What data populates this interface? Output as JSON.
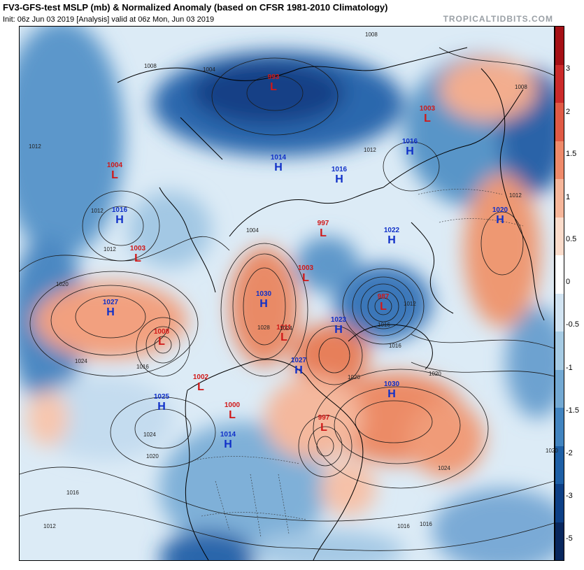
{
  "header": {
    "title": "FV3-GFS-test MSLP (mb) & Normalized Anomaly (based on CFSR 1981-2010 Climatology)",
    "subtitle": "Init: 06z Jun 03 2019   [Analysis]   valid at 06z Mon, Jun 03 2019",
    "brand": "TROPICALTIDBITS.COM"
  },
  "colorbar": {
    "ticks": [
      "3",
      "2",
      "1.5",
      "1",
      "0.5",
      "0",
      "-0.5",
      "-1",
      "-1.5",
      "-2",
      "-3",
      "-5"
    ],
    "colors": [
      "#a50f15",
      "#cb2a2a",
      "#e05a45",
      "#ef8a6a",
      "#f6b69a",
      "#fbdccb",
      "#ffffff",
      "#d2e4f2",
      "#a6cbe4",
      "#73a9d3",
      "#4184c0",
      "#1d5fa6",
      "#0c3f86",
      "#08275e"
    ]
  },
  "pressure_centers": [
    {
      "type": "L",
      "value": "993"
    },
    {
      "type": "L",
      "value": "1003"
    },
    {
      "type": "H",
      "value": "1016"
    },
    {
      "type": "H",
      "value": "1014"
    },
    {
      "type": "H",
      "value": "1016"
    },
    {
      "type": "L",
      "value": "1004"
    },
    {
      "type": "H",
      "value": "1016"
    },
    {
      "type": "L",
      "value": "997"
    },
    {
      "type": "H",
      "value": "1022"
    },
    {
      "type": "H",
      "value": "1020"
    },
    {
      "type": "L",
      "value": "1003"
    },
    {
      "type": "L",
      "value": "1003"
    },
    {
      "type": "H",
      "value": "1030"
    },
    {
      "type": "L",
      "value": "987"
    },
    {
      "type": "H",
      "value": "1027"
    },
    {
      "type": "L",
      "value": "1008"
    },
    {
      "type": "L",
      "value": "1011"
    },
    {
      "type": "H",
      "value": "1023"
    },
    {
      "type": "H",
      "value": "1027"
    },
    {
      "type": "L",
      "value": "1002"
    },
    {
      "type": "H",
      "value": "1030"
    },
    {
      "type": "H",
      "value": "1025"
    },
    {
      "type": "L",
      "value": "1000"
    },
    {
      "type": "L",
      "value": "997"
    },
    {
      "type": "H",
      "value": "1014"
    }
  ],
  "isobar_labels": [
    "1008",
    "1004",
    "1008",
    "1012",
    "1012",
    "1012",
    "1012",
    "1020",
    "1016",
    "1024",
    "1028",
    "1024",
    "1020",
    "1016",
    "1024",
    "1020",
    "1016",
    "1012",
    "1004",
    "1016",
    "1020",
    "1012",
    "1012",
    "1008",
    "1012",
    "1016",
    "1020",
    "1024",
    "1016",
    "1012"
  ]
}
